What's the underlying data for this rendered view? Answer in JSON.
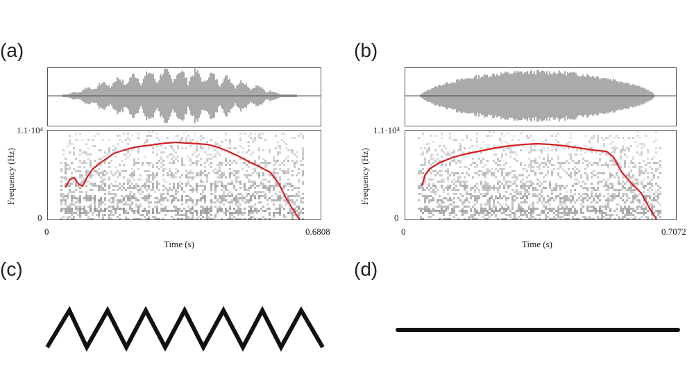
{
  "panels": {
    "a": {
      "label": "(a)",
      "ytick_top": "1.1·10⁴",
      "ytick_bottom": "0",
      "ylabel": "Frequency (Hz)",
      "xtick_left": "0",
      "xtick_right": "0.6808",
      "xlabel": "Time (s)",
      "pitch_color": "#d42020"
    },
    "b": {
      "label": "(b)",
      "ytick_top": "1.1·10⁴",
      "ytick_bottom": "0",
      "ylabel": "Frequency (Hz)",
      "xtick_left": "0",
      "xtick_right": "0.7072",
      "xlabel": "Time (s)",
      "pitch_color": "#d42020"
    },
    "c": {
      "label": "(c)",
      "shape": "zigzag"
    },
    "d": {
      "label": "(d)",
      "shape": "flat-line"
    }
  }
}
